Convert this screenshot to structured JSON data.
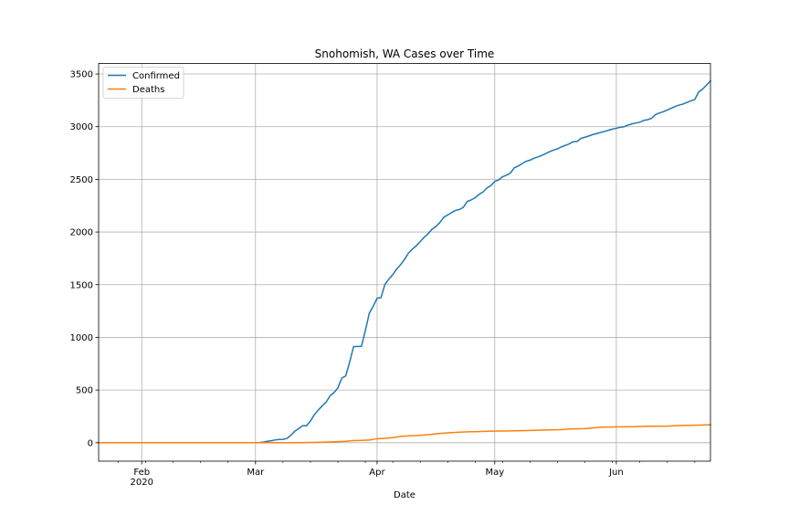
{
  "chart_data": {
    "type": "line",
    "title": "Snohomish, WA Cases over Time",
    "xlabel": "Date",
    "ylabel": "",
    "x_range": [
      "2020-01-21",
      "2020-06-25"
    ],
    "ylim": [
      -175,
      3600
    ],
    "grid": true,
    "legend_position": "top-left",
    "x_ticks": [
      {
        "date": "2020-02-01",
        "label": "Feb",
        "sublabel": "2020"
      },
      {
        "date": "2020-03-01",
        "label": "Mar",
        "sublabel": ""
      },
      {
        "date": "2020-04-01",
        "label": "Apr",
        "sublabel": ""
      },
      {
        "date": "2020-05-01",
        "label": "May",
        "sublabel": ""
      },
      {
        "date": "2020-06-01",
        "label": "Jun",
        "sublabel": ""
      }
    ],
    "y_ticks": [
      0,
      500,
      1000,
      1500,
      2000,
      2500,
      3000,
      3500
    ],
    "series": [
      {
        "name": "Confirmed",
        "color": "#1f77b4",
        "points": [
          [
            "2020-01-21",
            0
          ],
          [
            "2020-02-29",
            0
          ],
          [
            "2020-03-01",
            1
          ],
          [
            "2020-03-02",
            2
          ],
          [
            "2020-03-03",
            6
          ],
          [
            "2020-03-04",
            14
          ],
          [
            "2020-03-05",
            19
          ],
          [
            "2020-03-06",
            26
          ],
          [
            "2020-03-07",
            31
          ],
          [
            "2020-03-08",
            32
          ],
          [
            "2020-03-09",
            40
          ],
          [
            "2020-03-10",
            70
          ],
          [
            "2020-03-11",
            109
          ],
          [
            "2020-03-12",
            134
          ],
          [
            "2020-03-13",
            161
          ],
          [
            "2020-03-14",
            161
          ],
          [
            "2020-03-15",
            206
          ],
          [
            "2020-03-16",
            266
          ],
          [
            "2020-03-17",
            310
          ],
          [
            "2020-03-18",
            350
          ],
          [
            "2020-03-19",
            385
          ],
          [
            "2020-03-20",
            445
          ],
          [
            "2020-03-21",
            475
          ],
          [
            "2020-03-22",
            520
          ],
          [
            "2020-03-23",
            614
          ],
          [
            "2020-03-24",
            634
          ],
          [
            "2020-03-25",
            765
          ],
          [
            "2020-03-26",
            912
          ],
          [
            "2020-03-27",
            914
          ],
          [
            "2020-03-28",
            914
          ],
          [
            "2020-03-29",
            1063
          ],
          [
            "2020-03-30",
            1228
          ],
          [
            "2020-03-31",
            1295
          ],
          [
            "2020-04-01",
            1372
          ],
          [
            "2020-04-02",
            1377
          ],
          [
            "2020-04-03",
            1504
          ],
          [
            "2020-04-04",
            1553
          ],
          [
            "2020-04-05",
            1595
          ],
          [
            "2020-04-06",
            1650
          ],
          [
            "2020-04-07",
            1690
          ],
          [
            "2020-04-08",
            1740
          ],
          [
            "2020-04-09",
            1800
          ],
          [
            "2020-04-10",
            1838
          ],
          [
            "2020-04-11",
            1870
          ],
          [
            "2020-04-12",
            1910
          ],
          [
            "2020-04-13",
            1950
          ],
          [
            "2020-04-14",
            1983
          ],
          [
            "2020-04-15",
            2027
          ],
          [
            "2020-04-16",
            2052
          ],
          [
            "2020-04-17",
            2090
          ],
          [
            "2020-04-18",
            2140
          ],
          [
            "2020-04-19",
            2162
          ],
          [
            "2020-04-20",
            2185
          ],
          [
            "2020-04-21",
            2205
          ],
          [
            "2020-04-22",
            2214
          ],
          [
            "2020-04-23",
            2235
          ],
          [
            "2020-04-24",
            2290
          ],
          [
            "2020-04-25",
            2305
          ],
          [
            "2020-04-26",
            2325
          ],
          [
            "2020-04-27",
            2358
          ],
          [
            "2020-04-28",
            2380
          ],
          [
            "2020-04-29",
            2418
          ],
          [
            "2020-04-30",
            2440
          ],
          [
            "2020-05-01",
            2480
          ],
          [
            "2020-05-02",
            2495
          ],
          [
            "2020-05-03",
            2525
          ],
          [
            "2020-05-04",
            2540
          ],
          [
            "2020-05-05",
            2560
          ],
          [
            "2020-05-06",
            2610
          ],
          [
            "2020-05-07",
            2626
          ],
          [
            "2020-05-08",
            2650
          ],
          [
            "2020-05-09",
            2672
          ],
          [
            "2020-05-10",
            2682
          ],
          [
            "2020-05-11",
            2700
          ],
          [
            "2020-05-12",
            2712
          ],
          [
            "2020-05-13",
            2727
          ],
          [
            "2020-05-14",
            2745
          ],
          [
            "2020-05-15",
            2763
          ],
          [
            "2020-05-16",
            2778
          ],
          [
            "2020-05-17",
            2790
          ],
          [
            "2020-05-18",
            2808
          ],
          [
            "2020-05-19",
            2823
          ],
          [
            "2020-05-20",
            2837
          ],
          [
            "2020-05-21",
            2857
          ],
          [
            "2020-05-22",
            2860
          ],
          [
            "2020-05-23",
            2890
          ],
          [
            "2020-05-24",
            2900
          ],
          [
            "2020-05-25",
            2912
          ],
          [
            "2020-05-26",
            2925
          ],
          [
            "2020-05-27",
            2935
          ],
          [
            "2020-05-28",
            2945
          ],
          [
            "2020-05-29",
            2955
          ],
          [
            "2020-05-30",
            2966
          ],
          [
            "2020-05-31",
            2977
          ],
          [
            "2020-06-01",
            2985
          ],
          [
            "2020-06-02",
            2994
          ],
          [
            "2020-06-03",
            3000
          ],
          [
            "2020-06-04",
            3015
          ],
          [
            "2020-06-05",
            3027
          ],
          [
            "2020-06-06",
            3035
          ],
          [
            "2020-06-07",
            3042
          ],
          [
            "2020-06-08",
            3060
          ],
          [
            "2020-06-09",
            3066
          ],
          [
            "2020-06-10",
            3080
          ],
          [
            "2020-06-11",
            3115
          ],
          [
            "2020-06-12",
            3130
          ],
          [
            "2020-06-13",
            3142
          ],
          [
            "2020-06-14",
            3158
          ],
          [
            "2020-06-15",
            3175
          ],
          [
            "2020-06-16",
            3192
          ],
          [
            "2020-06-17",
            3205
          ],
          [
            "2020-06-18",
            3215
          ],
          [
            "2020-06-19",
            3230
          ],
          [
            "2020-06-20",
            3245
          ],
          [
            "2020-06-21",
            3258
          ],
          [
            "2020-06-22",
            3330
          ],
          [
            "2020-06-23",
            3356
          ],
          [
            "2020-06-24",
            3395
          ],
          [
            "2020-06-25",
            3435
          ]
        ]
      },
      {
        "name": "Deaths",
        "color": "#ff7f0e",
        "points": [
          [
            "2020-01-21",
            0
          ],
          [
            "2020-03-10",
            0
          ],
          [
            "2020-03-14",
            2
          ],
          [
            "2020-03-18",
            5
          ],
          [
            "2020-03-22",
            10
          ],
          [
            "2020-03-24",
            14
          ],
          [
            "2020-03-26",
            20
          ],
          [
            "2020-03-28",
            22
          ],
          [
            "2020-03-30",
            25
          ],
          [
            "2020-04-01",
            38
          ],
          [
            "2020-04-03",
            42
          ],
          [
            "2020-04-05",
            48
          ],
          [
            "2020-04-07",
            60
          ],
          [
            "2020-04-09",
            65
          ],
          [
            "2020-04-11",
            68
          ],
          [
            "2020-04-13",
            73
          ],
          [
            "2020-04-15",
            80
          ],
          [
            "2020-04-17",
            88
          ],
          [
            "2020-04-19",
            94
          ],
          [
            "2020-04-21",
            98
          ],
          [
            "2020-04-24",
            103
          ],
          [
            "2020-04-27",
            106
          ],
          [
            "2020-04-30",
            110
          ],
          [
            "2020-05-05",
            112
          ],
          [
            "2020-05-10",
            116
          ],
          [
            "2020-05-15",
            122
          ],
          [
            "2020-05-18",
            124
          ],
          [
            "2020-05-20",
            130
          ],
          [
            "2020-05-24",
            134
          ],
          [
            "2020-05-26",
            140
          ],
          [
            "2020-05-28",
            148
          ],
          [
            "2020-06-01",
            150
          ],
          [
            "2020-06-05",
            152
          ],
          [
            "2020-06-09",
            156
          ],
          [
            "2020-06-14",
            158
          ],
          [
            "2020-06-16",
            162
          ],
          [
            "2020-06-20",
            165
          ],
          [
            "2020-06-25",
            170
          ]
        ]
      }
    ]
  }
}
